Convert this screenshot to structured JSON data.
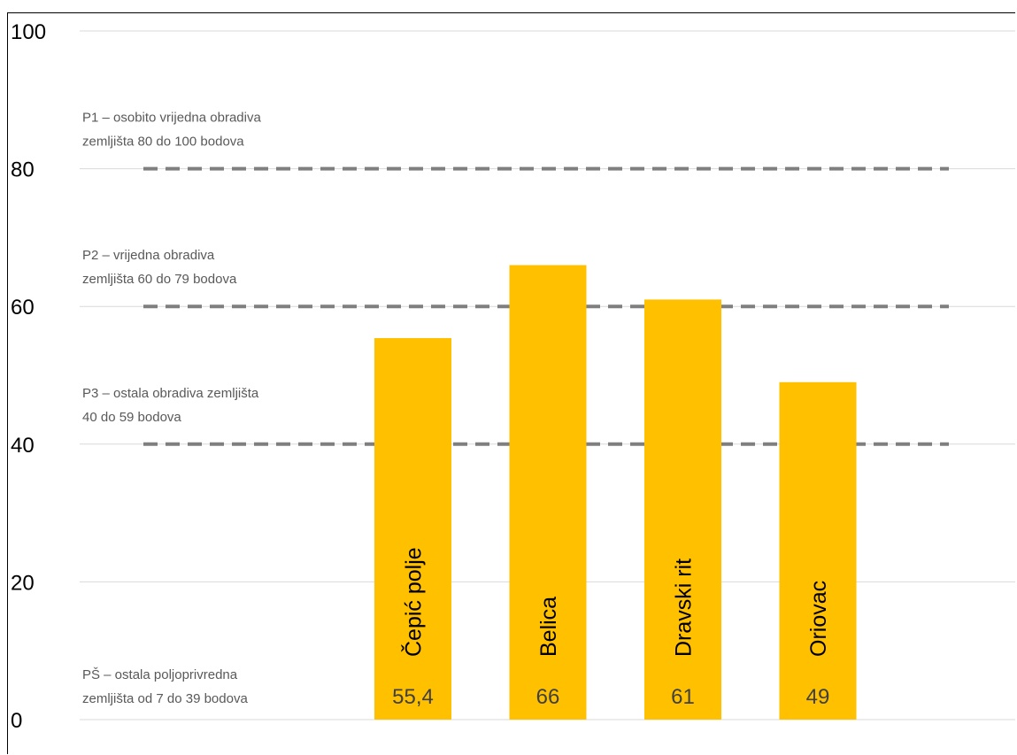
{
  "chart_data": {
    "type": "bar",
    "categories": [
      "Čepić polje",
      "Belica",
      "Dravski rit",
      "Oriovac"
    ],
    "values": [
      55.4,
      66,
      61,
      49
    ],
    "value_labels": [
      "55,4",
      "66",
      "61",
      "49"
    ],
    "ylim": [
      0,
      100
    ],
    "y_ticks": [
      0,
      20,
      40,
      60,
      80,
      100
    ],
    "y_tick_labels": [
      "0",
      "20",
      "40",
      "60",
      "80",
      "100"
    ],
    "grid": true,
    "bar_color": "#FFC000",
    "reference_lines": [
      {
        "value": 80,
        "label_lines": [
          "P1 – osobito vrijedna obradiva",
          "zemljišta 80 do 100 bodova"
        ]
      },
      {
        "value": 60,
        "label_lines": [
          "P2 – vrijedna obradiva",
          "zemljišta 60 do 79 bodova"
        ]
      },
      {
        "value": 40,
        "label_lines": [
          "P3 – ostala obradiva zemljišta",
          "40 do 59 bodova"
        ]
      }
    ],
    "bottom_zone_label": [
      "PŠ – ostala poljoprivredna",
      "zemljišta od 7 do 39 bodova"
    ]
  }
}
